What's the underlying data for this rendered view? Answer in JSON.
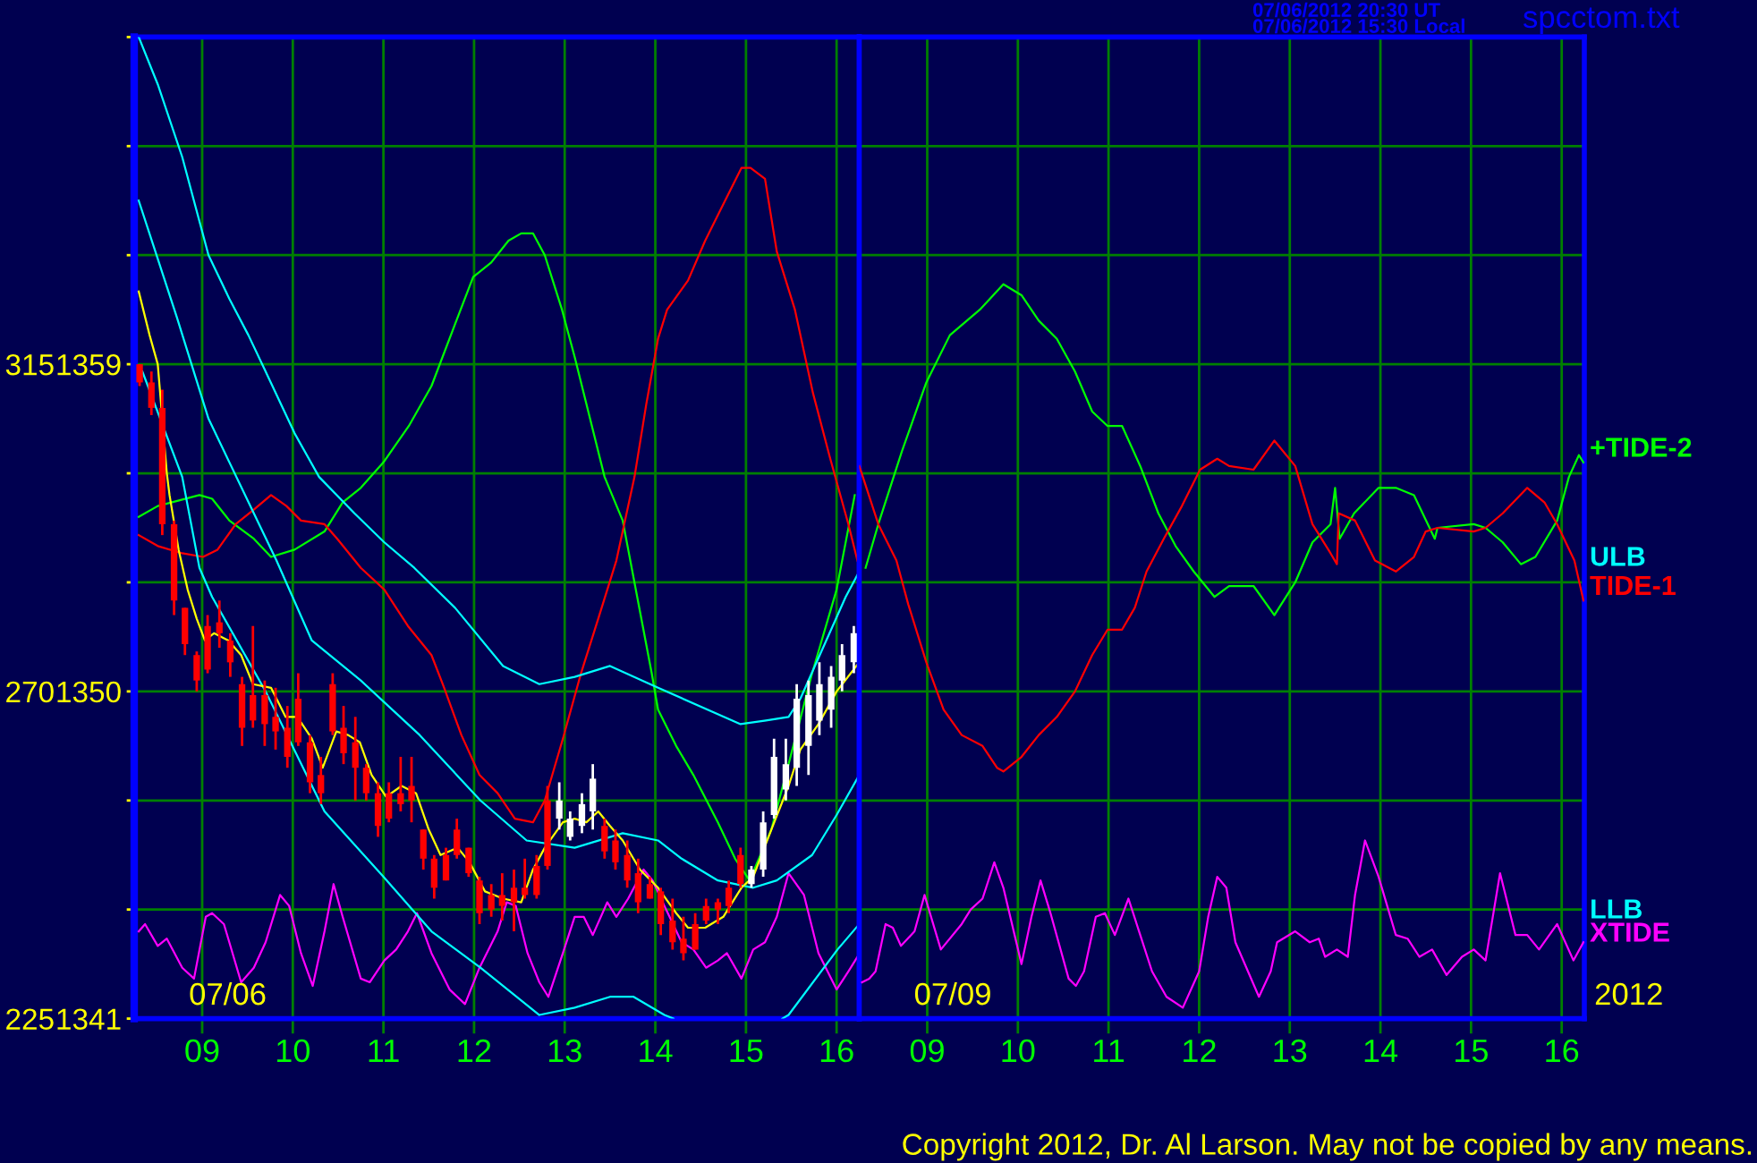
{
  "chart_data": [
    {
      "type": "candlestick",
      "x": [
        8.31,
        8.44,
        8.56,
        8.69,
        8.81,
        8.94,
        9.06,
        9.19,
        9.31,
        9.44,
        9.56,
        9.69,
        9.81,
        9.94,
        10.06,
        10.19,
        10.31,
        10.44,
        10.56,
        10.69,
        10.81,
        10.94,
        11.06,
        11.19,
        11.31,
        11.44,
        11.56,
        11.69,
        11.81,
        11.94,
        12.06,
        12.19,
        12.31,
        12.44,
        12.56,
        12.69,
        12.81,
        12.94,
        13.06,
        13.19,
        13.31,
        13.44,
        13.56,
        13.69,
        13.81,
        13.94,
        14.06,
        14.19,
        14.31,
        14.44,
        14.56,
        14.69,
        14.81,
        14.94,
        15.06,
        15.19,
        15.31,
        15.44,
        15.56,
        15.69,
        15.81,
        15.94,
        16.06,
        16.19
      ],
      "ohlc": [
        [
          1359.0,
          1359.0,
          1358.4,
          1358.5
        ],
        [
          1358.5,
          1358.8,
          1357.6,
          1357.8
        ],
        [
          1357.8,
          1358.3,
          1354.3,
          1354.6
        ],
        [
          1354.6,
          1354.7,
          1352.1,
          1352.5
        ],
        [
          1352.3,
          1352.3,
          1351.0,
          1351.3
        ],
        [
          1351.0,
          1351.1,
          1350.0,
          1350.3
        ],
        [
          1351.8,
          1352.1,
          1350.5,
          1350.6
        ],
        [
          1351.9,
          1352.5,
          1351.2,
          1351.6
        ],
        [
          1351.4,
          1351.6,
          1350.4,
          1350.8
        ],
        [
          1350.2,
          1350.4,
          1348.5,
          1349.0
        ],
        [
          1349.9,
          1351.8,
          1349.0,
          1349.2
        ],
        [
          1349.9,
          1350.3,
          1348.5,
          1349.1
        ],
        [
          1349.3,
          1350.1,
          1348.4,
          1348.9
        ],
        [
          1349.0,
          1349.6,
          1347.9,
          1348.2
        ],
        [
          1349.8,
          1350.5,
          1348.5,
          1348.6
        ],
        [
          1348.6,
          1348.8,
          1347.2,
          1347.5
        ],
        [
          1347.7,
          1348.2,
          1346.9,
          1347.2
        ],
        [
          1350.2,
          1350.5,
          1348.8,
          1348.9
        ],
        [
          1349.0,
          1349.6,
          1348.0,
          1348.3
        ],
        [
          1348.6,
          1349.3,
          1347.0,
          1347.9
        ],
        [
          1347.9,
          1348.0,
          1347.0,
          1347.2
        ],
        [
          1347.2,
          1347.5,
          1346.0,
          1346.3
        ],
        [
          1347.2,
          1347.5,
          1346.4,
          1346.5
        ],
        [
          1347.2,
          1348.2,
          1346.7,
          1346.9
        ],
        [
          1347.4,
          1348.2,
          1346.4,
          1347.0
        ],
        [
          1346.2,
          1346.2,
          1345.1,
          1345.4
        ],
        [
          1345.4,
          1345.5,
          1344.3,
          1344.6
        ],
        [
          1345.5,
          1345.7,
          1344.8,
          1344.8
        ],
        [
          1346.2,
          1346.5,
          1345.4,
          1345.5
        ],
        [
          1345.7,
          1345.7,
          1344.9,
          1345.0
        ],
        [
          1344.8,
          1344.9,
          1343.6,
          1343.9
        ],
        [
          1344.4,
          1344.7,
          1343.8,
          1344.0
        ],
        [
          1344.4,
          1345.0,
          1343.7,
          1344.1
        ],
        [
          1344.6,
          1345.1,
          1343.4,
          1344.2
        ],
        [
          1344.6,
          1345.4,
          1344.3,
          1344.4
        ],
        [
          1345.2,
          1345.5,
          1344.3,
          1344.4
        ],
        [
          1347.0,
          1347.4,
          1345.1,
          1345.2
        ],
        [
          1346.5,
          1347.5,
          1346.2,
          1347.0
        ],
        [
          1346.0,
          1346.7,
          1345.9,
          1346.5
        ],
        [
          1346.3,
          1347.2,
          1346.1,
          1346.9
        ],
        [
          1346.7,
          1348.0,
          1346.2,
          1347.6
        ],
        [
          1346.3,
          1346.5,
          1345.4,
          1345.6
        ],
        [
          1345.9,
          1346.2,
          1345.1,
          1345.3
        ],
        [
          1345.5,
          1345.9,
          1344.6,
          1344.8
        ],
        [
          1345.0,
          1345.4,
          1343.9,
          1344.2
        ],
        [
          1344.7,
          1344.9,
          1344.3,
          1344.3
        ],
        [
          1344.5,
          1344.6,
          1343.3,
          1343.6
        ],
        [
          1343.7,
          1344.3,
          1342.9,
          1343.1
        ],
        [
          1343.2,
          1343.8,
          1342.6,
          1342.8
        ],
        [
          1343.6,
          1343.9,
          1342.9,
          1342.9
        ],
        [
          1344.1,
          1344.3,
          1343.6,
          1343.7
        ],
        [
          1344.2,
          1344.3,
          1343.6,
          1344.0
        ],
        [
          1344.6,
          1344.8,
          1343.9,
          1344.1
        ],
        [
          1345.5,
          1345.7,
          1344.6,
          1344.7
        ],
        [
          1344.7,
          1345.2,
          1344.6,
          1345.1
        ],
        [
          1345.1,
          1346.7,
          1344.9,
          1346.4
        ],
        [
          1346.6,
          1348.7,
          1346.5,
          1348.2
        ],
        [
          1347.3,
          1348.7,
          1347.0,
          1348.0
        ],
        [
          1347.9,
          1350.2,
          1347.4,
          1349.8
        ],
        [
          1348.5,
          1350.3,
          1347.7,
          1349.9
        ],
        [
          1349.2,
          1350.8,
          1348.8,
          1350.2
        ],
        [
          1349.5,
          1350.7,
          1349.0,
          1350.4
        ],
        [
          1350.3,
          1351.3,
          1350.0,
          1351.0
        ],
        [
          1350.8,
          1351.8,
          1350.5,
          1351.6
        ]
      ],
      "colors": [
        "#ff0000",
        "#ff0000",
        "#ff0000",
        "#ff0000",
        "#ff0000",
        "#ff0000",
        "#ff0000",
        "#ff0000",
        "#ff0000",
        "#ff0000",
        "#ff0000",
        "#ff0000",
        "#ff0000",
        "#ff0000",
        "#ff0000",
        "#ff0000",
        "#ff0000",
        "#ff0000",
        "#ff0000",
        "#ff0000",
        "#ff0000",
        "#ff0000",
        "#ff0000",
        "#ff0000",
        "#ff0000",
        "#ff0000",
        "#ff0000",
        "#ff0000",
        "#ff0000",
        "#ff0000",
        "#ff0000",
        "#ff0000",
        "#ff0000",
        "#ff0000",
        "#ff0000",
        "#ff0000",
        "#ff0000",
        "#ffffff",
        "#ffffff",
        "#ffffff",
        "#ffffff",
        "#ff0000",
        "#ff0000",
        "#ff0000",
        "#ff0000",
        "#ff0000",
        "#ff0000",
        "#ff0000",
        "#ff0000",
        "#ff0000",
        "#ff0000",
        "#ff0000",
        "#ff0000",
        "#ff0000",
        "#ffffff",
        "#ffffff",
        "#ffffff",
        "#ffffff",
        "#ffffff",
        "#ffffff",
        "#ffffff",
        "#ffffff",
        "#ffffff",
        "#ffffff"
      ],
      "series": [
        {
          "type": "line",
          "color": "#00ff00",
          "x": [
            8.3,
            8.51,
            8.97,
            9.11,
            9.3,
            9.57,
            9.76,
            10.02,
            10.35,
            10.55,
            10.75,
            11.0,
            11.28,
            11.53,
            11.79,
            11.99,
            12.19,
            12.38,
            12.52,
            12.65,
            12.78,
            12.97,
            13.11,
            13.31,
            13.44,
            13.64,
            13.8,
            13.96,
            14.03,
            14.23,
            14.42,
            14.69,
            14.88,
            15.04,
            15.28,
            15.47,
            15.73,
            16.0,
            16.2
          ],
          "values": [
            1354.8,
            1355.1,
            1355.4,
            1355.3,
            1354.7,
            1354.2,
            1353.7,
            1353.9,
            1354.4,
            1355.2,
            1355.6,
            1356.3,
            1357.3,
            1358.4,
            1360.1,
            1361.4,
            1361.8,
            1362.4,
            1362.6,
            1362.6,
            1362.0,
            1360.5,
            1359.2,
            1357.2,
            1355.9,
            1354.7,
            1352.6,
            1350.5,
            1349.5,
            1348.5,
            1347.7,
            1346.4,
            1345.4,
            1344.8,
            1346.2,
            1348.0,
            1350.5,
            1352.8,
            1355.4
          ]
        },
        {
          "type": "line",
          "color": "#ff0000",
          "x": [
            8.3,
            8.51,
            8.78,
            9.01,
            9.17,
            9.37,
            9.57,
            9.76,
            9.93,
            10.09,
            10.35,
            10.49,
            10.75,
            11.01,
            11.27,
            11.53,
            11.67,
            11.86,
            12.06,
            12.26,
            12.45,
            12.65,
            12.78,
            12.98,
            13.18,
            13.37,
            13.57,
            13.77,
            13.9,
            14.03,
            14.13,
            14.36,
            14.55,
            14.75,
            14.95,
            15.05,
            15.21,
            15.34,
            15.54,
            15.74,
            15.93,
            16.13,
            16.23
          ],
          "values": [
            1354.3,
            1354.0,
            1353.8,
            1353.7,
            1353.9,
            1354.6,
            1355.0,
            1355.4,
            1355.1,
            1354.7,
            1354.6,
            1354.2,
            1353.4,
            1352.8,
            1351.8,
            1351.0,
            1350.1,
            1348.8,
            1347.7,
            1347.2,
            1346.5,
            1346.4,
            1347.0,
            1348.7,
            1350.5,
            1352.0,
            1353.6,
            1355.9,
            1357.9,
            1359.7,
            1360.5,
            1361.3,
            1362.4,
            1363.4,
            1364.4,
            1364.4,
            1364.1,
            1362.1,
            1360.5,
            1358.2,
            1356.4,
            1354.6,
            1353.6
          ]
        },
        {
          "type": "line",
          "color": "#ff00ff",
          "x": [
            8.3,
            8.37,
            8.51,
            8.61,
            8.78,
            8.91,
            9.04,
            9.11,
            9.24,
            9.43,
            9.57,
            9.7,
            9.86,
            9.96,
            10.09,
            10.22,
            10.35,
            10.45,
            10.55,
            10.75,
            10.85,
            11.01,
            11.14,
            11.27,
            11.37,
            11.53,
            11.73,
            11.9,
            12.06,
            12.26,
            12.36,
            12.46,
            12.59,
            12.72,
            12.82,
            12.98,
            13.11,
            13.21,
            13.31,
            13.47,
            13.57,
            13.7,
            13.87,
            13.97,
            14.1,
            14.29,
            14.42,
            14.56,
            14.69,
            14.79,
            14.95,
            15.08,
            15.21,
            15.34,
            15.47,
            15.64,
            15.8,
            16.0,
            16.13,
            16.23
          ],
          "values": [
            1343.4,
            1343.6,
            1343.0,
            1343.2,
            1342.4,
            1342.1,
            1343.8,
            1343.9,
            1343.6,
            1342.0,
            1342.4,
            1343.1,
            1344.4,
            1344.1,
            1342.8,
            1341.9,
            1343.4,
            1344.7,
            1343.8,
            1342.1,
            1342.0,
            1342.6,
            1342.9,
            1343.4,
            1343.9,
            1342.8,
            1341.8,
            1341.4,
            1342.4,
            1343.4,
            1344.2,
            1344.1,
            1342.8,
            1342.0,
            1341.6,
            1342.8,
            1343.8,
            1343.8,
            1343.3,
            1344.2,
            1343.8,
            1344.3,
            1345.1,
            1344.8,
            1344.1,
            1343.1,
            1342.9,
            1342.4,
            1342.6,
            1342.8,
            1342.1,
            1342.9,
            1343.1,
            1343.8,
            1345.0,
            1344.4,
            1342.8,
            1341.8,
            1342.3,
            1342.7
          ]
        },
        {
          "name": "ULB",
          "type": "line",
          "color": "#00ffff",
          "x": [
            8.3,
            8.51,
            8.78,
            9.07,
            9.3,
            9.51,
            9.7,
            10.02,
            10.29,
            10.68,
            11.01,
            11.34,
            11.79,
            12.32,
            12.72,
            13.11,
            13.5,
            14.03,
            14.94,
            15.22,
            15.47,
            15.6,
            16.1,
            16.25
          ],
          "values": [
            1368.0,
            1366.7,
            1364.7,
            1362.0,
            1360.8,
            1359.8,
            1358.8,
            1357.1,
            1355.9,
            1354.9,
            1354.1,
            1353.4,
            1352.3,
            1350.7,
            1350.2,
            1350.4,
            1350.7,
            1350.1,
            1349.1,
            1349.2,
            1349.3,
            1349.8,
            1352.6,
            1353.3
          ]
        },
        {
          "type": "line",
          "color": "#00ffff",
          "x": [
            8.3,
            8.72,
            9.07,
            9.57,
            9.82,
            10.21,
            10.75,
            11.4,
            12.07,
            12.58,
            13.11,
            13.64,
            14.03,
            14.29,
            14.69,
            15.08,
            15.34,
            15.73,
            16.0,
            16.25
          ],
          "values": [
            1363.5,
            1360.3,
            1357.5,
            1354.9,
            1353.6,
            1351.4,
            1350.3,
            1348.8,
            1347.0,
            1345.9,
            1345.7,
            1346.1,
            1345.9,
            1345.4,
            1344.8,
            1344.6,
            1344.8,
            1345.5,
            1346.6,
            1347.7
          ]
        },
        {
          "name": "LLB",
          "type": "line",
          "color": "#00ffff",
          "x": [
            8.34,
            8.78,
            8.97,
            9.11,
            9.7,
            10.35,
            11.0,
            11.53,
            12.07,
            12.72,
            13.11,
            13.5,
            13.76,
            14.1,
            14.2,
            14.8,
            15.4,
            15.47,
            16.01,
            16.25
          ],
          "values": [
            1358.8,
            1355.9,
            1353.4,
            1352.6,
            1350.0,
            1346.7,
            1344.9,
            1343.4,
            1342.4,
            1341.1,
            1341.3,
            1341.6,
            1341.6,
            1341.1,
            1341.0,
            null,
            1341.0,
            1341.1,
            1342.9,
            1343.6
          ]
        },
        {
          "type": "line",
          "color": "#ffff00",
          "x": [
            8.3,
            8.42,
            8.51,
            8.61,
            8.64,
            8.74,
            8.84,
            8.94,
            9.03,
            9.13,
            9.29,
            9.43,
            9.56,
            9.76,
            9.92,
            10.05,
            10.21,
            10.33,
            10.48,
            10.61,
            10.74,
            10.87,
            11.03,
            11.2,
            11.36,
            11.5,
            11.63,
            11.82,
            11.95,
            12.12,
            12.32,
            12.52,
            12.65,
            12.78,
            12.98,
            13.11,
            13.24,
            13.37,
            13.5,
            13.64,
            13.83,
            14.03,
            14.23,
            14.36,
            14.55,
            14.75,
            14.95,
            15.08,
            15.28,
            15.47,
            15.6,
            15.8,
            16.0,
            16.25
          ],
          "values": [
            1361.0,
            1359.8,
            1359.0,
            1356.0,
            1355.4,
            1353.9,
            1352.8,
            1352.0,
            1351.4,
            1351.6,
            1351.4,
            1351.0,
            1350.2,
            1350.1,
            1349.3,
            1349.3,
            1348.7,
            1347.9,
            1348.9,
            1348.8,
            1348.6,
            1347.7,
            1347.1,
            1347.4,
            1347.2,
            1346.2,
            1345.5,
            1345.7,
            1345.3,
            1344.5,
            1344.3,
            1344.2,
            1345.1,
            1345.7,
            1346.4,
            1346.5,
            1346.4,
            1346.7,
            1346.3,
            1345.9,
            1345.1,
            1344.6,
            1343.9,
            1343.5,
            1343.5,
            1343.8,
            1344.6,
            1344.9,
            1346.2,
            1347.4,
            1348.4,
            1349.1,
            1350.0,
            1350.8
          ]
        }
      ],
      "xlim": [
        8.25,
        16.25
      ],
      "xticks": [
        {
          "value": 9,
          "label": "09"
        },
        10,
        11,
        12,
        13,
        14,
        15,
        16
      ],
      "ylim": [
        1341,
        1368
      ],
      "yticks": [
        1341,
        {
          "value": 1344,
          "label": null
        },
        {
          "value": 1347,
          "label": null
        },
        1350,
        {
          "value": 1353,
          "label": null
        },
        {
          "value": 1356,
          "label": null
        },
        1359,
        {
          "value": 1362,
          "label": null
        },
        {
          "value": 1365,
          "label": null
        },
        {
          "value": 1368,
          "label": null
        }
      ],
      "y2lim": [
        225,
        360
      ],
      "y2ticks": [
        225,
        270,
        315
      ],
      "grid": true,
      "annotations": [
        "07/06"
      ]
    },
    {
      "type": "line",
      "series": [
        {
          "name": "+TIDE-2",
          "type": "line",
          "color": "#00ff00",
          "x": [
            8.32,
            8.46,
            8.72,
            8.99,
            9.25,
            9.58,
            9.84,
            10.04,
            10.23,
            10.43,
            10.63,
            10.82,
            10.99,
            11.15,
            11.35,
            11.55,
            11.74,
            11.94,
            12.17,
            12.33,
            12.6,
            12.83,
            13.06,
            13.25,
            13.45,
            13.5,
            13.55,
            13.71,
            13.98,
            14.17,
            14.37,
            14.6,
            14.63,
            15.03,
            15.16,
            15.35,
            15.55,
            15.71,
            15.95,
            16.08,
            16.19,
            16.24
          ],
          "values": [
            1353.4,
            1354.6,
            1356.6,
            1358.5,
            1359.8,
            1360.5,
            1361.2,
            1360.9,
            1360.2,
            1359.7,
            1358.8,
            1357.7,
            1357.3,
            1357.3,
            1356.2,
            1354.9,
            1354.0,
            1353.3,
            1352.6,
            1352.9,
            1352.9,
            1352.1,
            1353.0,
            1354.1,
            1354.6,
            1355.6,
            1354.2,
            1354.9,
            1355.6,
            1355.6,
            1355.4,
            1354.2,
            1354.5,
            1354.6,
            1354.5,
            1354.1,
            1353.5,
            1353.7,
            1354.7,
            1355.9,
            1356.5,
            1356.3
          ]
        },
        {
          "name": "TIDE-1",
          "type": "line",
          "color": "#ff0000",
          "x": [
            8.25,
            8.29,
            8.46,
            8.66,
            8.79,
            8.99,
            9.18,
            9.38,
            9.61,
            9.77,
            9.84,
            10.04,
            10.23,
            10.43,
            10.63,
            10.82,
            10.99,
            11.15,
            11.29,
            11.42,
            11.61,
            11.81,
            12.01,
            12.2,
            12.33,
            12.6,
            12.83,
            13.06,
            13.25,
            13.45,
            13.52,
            13.54,
            13.72,
            13.94,
            14.17,
            14.37,
            14.5,
            14.63,
            15.03,
            15.16,
            15.35,
            15.62,
            15.81,
            15.95,
            16.14,
            16.24
          ],
          "values": [
            1356.2,
            1355.9,
            1354.6,
            1353.6,
            1352.4,
            1350.8,
            1349.5,
            1348.8,
            1348.5,
            1347.9,
            1347.8,
            1348.2,
            1348.8,
            1349.3,
            1350.0,
            1351.0,
            1351.7,
            1351.7,
            1352.3,
            1353.3,
            1354.2,
            1355.1,
            1356.1,
            1356.4,
            1356.2,
            1356.1,
            1356.9,
            1356.2,
            1354.6,
            1353.8,
            1353.5,
            1354.9,
            1354.7,
            1353.6,
            1353.3,
            1353.7,
            1354.4,
            1354.5,
            1354.4,
            1354.5,
            1354.9,
            1355.6,
            1355.2,
            1354.6,
            1353.6,
            1352.5
          ]
        },
        {
          "name": "XTIDE",
          "type": "line",
          "color": "#ff00ff",
          "x": [
            8.28,
            8.36,
            8.43,
            8.54,
            8.62,
            8.71,
            8.86,
            8.97,
            9.15,
            9.38,
            9.48,
            9.61,
            9.74,
            9.84,
            10.04,
            10.15,
            10.25,
            10.36,
            10.56,
            10.64,
            10.73,
            10.86,
            10.96,
            11.07,
            11.22,
            11.35,
            11.48,
            11.64,
            11.82,
            12.0,
            12.1,
            12.2,
            12.3,
            12.4,
            12.66,
            12.79,
            12.86,
            13.06,
            13.22,
            13.32,
            13.39,
            13.52,
            13.64,
            13.72,
            13.83,
            13.98,
            14.17,
            14.3,
            14.43,
            14.57,
            14.73,
            14.9,
            15.03,
            15.16,
            15.32,
            15.49,
            15.62,
            15.75,
            15.95,
            16.13,
            16.24
          ],
          "values": [
            1342.0,
            1342.1,
            1342.3,
            1343.6,
            1343.5,
            1343.0,
            1343.4,
            1344.4,
            1342.9,
            1343.6,
            1344.0,
            1344.3,
            1345.3,
            1344.6,
            1342.5,
            1343.8,
            1344.8,
            1343.9,
            1342.1,
            1341.9,
            1342.3,
            1343.8,
            1343.9,
            1343.3,
            1344.3,
            1343.3,
            1342.3,
            1341.6,
            1341.3,
            1342.3,
            1343.8,
            1344.9,
            1344.6,
            1343.1,
            1341.6,
            1342.3,
            1343.1,
            1343.4,
            1343.1,
            1343.2,
            1342.7,
            1342.9,
            1342.7,
            1344.4,
            1345.9,
            1344.9,
            1343.3,
            1343.2,
            1342.7,
            1342.9,
            1342.2,
            1342.7,
            1342.9,
            1342.6,
            1345.0,
            1343.3,
            1343.3,
            1342.9,
            1343.6,
            1342.6,
            1343.1
          ]
        }
      ],
      "xlim": [
        8.25,
        16.25
      ],
      "xticks": [
        {
          "value": 9,
          "label": "09"
        },
        10,
        11,
        12,
        13,
        14,
        15,
        16
      ],
      "ylim": [
        1341,
        1368
      ],
      "yticks": [
        1341,
        1344,
        1347,
        1350,
        1353,
        1356,
        1359,
        1362,
        1365,
        1368
      ],
      "tick_labels": "x",
      "grid": true,
      "annotations": [
        "07/09",
        "2012",
        "07/06/2012 20:30 UT",
        "07/06/2012 15:30 Local",
        "spcctom.txt",
        "Copyright 2012, Dr. Al Larson. May not be copied by any means."
      ]
    }
  ]
}
